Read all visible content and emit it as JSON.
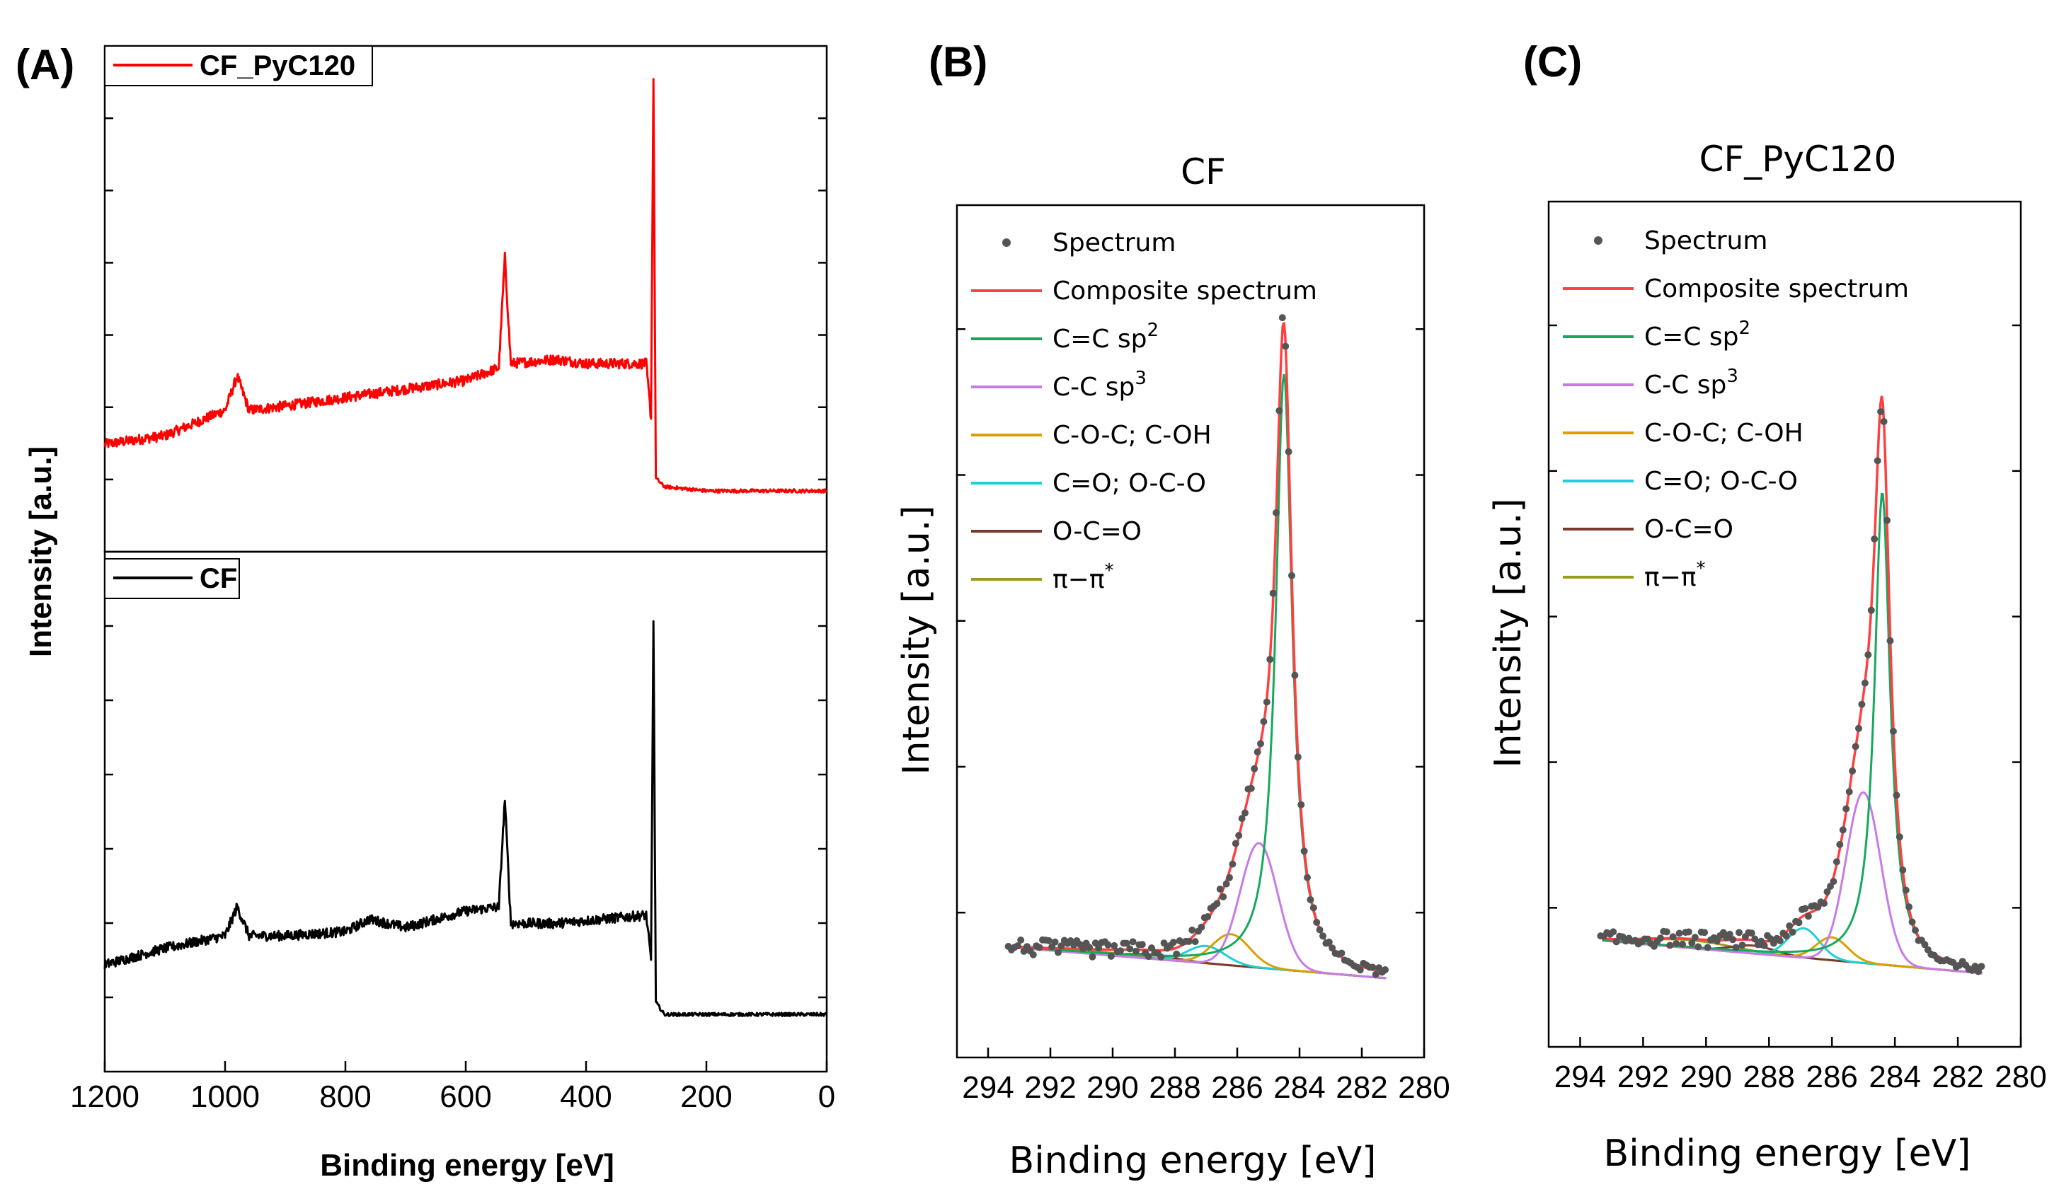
{
  "chart_data": [
    {
      "panel": "(A)",
      "type": "line",
      "title": "",
      "xlabel": "Binding energy [eV]",
      "ylabel": "Intensity [a.u.]",
      "xlim": [
        1200,
        0
      ],
      "xticks": [
        1200,
        1000,
        800,
        600,
        400,
        200,
        0
      ],
      "stacked_panels": [
        {
          "name": "CF_PyC120",
          "color": "#ff0000",
          "points": [
            [
              1200,
              0.12
            ],
            [
              1100,
              0.14
            ],
            [
              1000,
              0.2
            ],
            [
              980,
              0.28
            ],
            [
              960,
              0.2
            ],
            [
              900,
              0.21
            ],
            [
              800,
              0.23
            ],
            [
              700,
              0.25
            ],
            [
              600,
              0.27
            ],
            [
              545,
              0.3
            ],
            [
              535,
              0.56
            ],
            [
              525,
              0.31
            ],
            [
              450,
              0.32
            ],
            [
              400,
              0.31
            ],
            [
              300,
              0.31
            ],
            [
              292,
              0.18
            ],
            [
              288,
              0.98
            ],
            [
              284,
              0.04
            ],
            [
              270,
              0.02
            ],
            [
              200,
              0.01
            ],
            [
              100,
              0.01
            ],
            [
              0,
              0.01
            ]
          ]
        },
        {
          "name": "CF",
          "color": "#000000",
          "points": [
            [
              1200,
              0.13
            ],
            [
              1100,
              0.17
            ],
            [
              1000,
              0.2
            ],
            [
              980,
              0.27
            ],
            [
              960,
              0.2
            ],
            [
              900,
              0.2
            ],
            [
              800,
              0.21
            ],
            [
              760,
              0.24
            ],
            [
              700,
              0.22
            ],
            [
              600,
              0.26
            ],
            [
              545,
              0.27
            ],
            [
              535,
              0.53
            ],
            [
              525,
              0.23
            ],
            [
              450,
              0.23
            ],
            [
              300,
              0.25
            ],
            [
              292,
              0.14
            ],
            [
              288,
              0.96
            ],
            [
              284,
              0.04
            ],
            [
              270,
              0.01
            ],
            [
              200,
              0.01
            ],
            [
              100,
              0.01
            ],
            [
              0,
              0.01
            ]
          ]
        }
      ]
    },
    {
      "panel": "(B)",
      "type": "line",
      "title": "CF",
      "xlabel": "Binding energy [eV]",
      "ylabel": "Intensity [a.u.]",
      "xlim": [
        295,
        280
      ],
      "ylim": [
        0,
        1
      ],
      "xticks": [
        294,
        292,
        290,
        288,
        286,
        284,
        282,
        280
      ],
      "baseline": {
        "left": 0.045,
        "right": 0.0
      },
      "legend": [
        {
          "label": "Spectrum",
          "sup": "",
          "color": "#555555",
          "kind": "dot"
        },
        {
          "label": "Composite spectrum",
          "sup": "",
          "color": "#ff4040",
          "kind": "line"
        },
        {
          "label": "C=C sp",
          "sup": "2",
          "color": "#16a85c",
          "kind": "line"
        },
        {
          "label": "C-C sp",
          "sup": "3",
          "color": "#c77be6",
          "kind": "line"
        },
        {
          "label": "C-O-C; C-OH",
          "sup": "",
          "color": "#d9a000",
          "kind": "line"
        },
        {
          "label": "C=O; O-C-O",
          "sup": "",
          "color": "#1fcfd6",
          "kind": "line"
        },
        {
          "label": "O-C=O",
          "sup": "",
          "color": "#7a3b2e",
          "kind": "line"
        },
        {
          "label": "π−π",
          "sup": "*",
          "color": "#9b9b1a",
          "kind": "line"
        }
      ],
      "components": [
        {
          "name": "C=C sp2",
          "center": 284.5,
          "height": 0.86,
          "width": 0.32,
          "shape": "lorentz"
        },
        {
          "name": "C-C sp3",
          "center": 285.3,
          "height": 0.18,
          "width": 0.6,
          "shape": "gauss"
        },
        {
          "name": "C-O-C; C-OH",
          "center": 286.2,
          "height": 0.045,
          "width": 0.6,
          "shape": "gauss"
        },
        {
          "name": "C=O; O-C-O",
          "center": 287.0,
          "height": 0.025,
          "width": 0.6,
          "shape": "gauss"
        },
        {
          "name": "O-C=O",
          "center": 288.8,
          "height": 0.006,
          "width": 0.8,
          "shape": "gauss"
        },
        {
          "name": "π−π*",
          "center": 290.5,
          "height": 0.004,
          "width": 1.2,
          "shape": "gauss"
        }
      ]
    },
    {
      "panel": "(C)",
      "type": "line",
      "title": "CF_PyC120",
      "xlabel": "Binding energy [eV]",
      "ylabel": "Intensity [a.u.]",
      "xlim": [
        295,
        280
      ],
      "ylim": [
        0,
        1
      ],
      "xticks": [
        294,
        292,
        290,
        288,
        286,
        284,
        282,
        280
      ],
      "baseline": {
        "left": 0.05,
        "right": 0.0
      },
      "legend": [
        {
          "label": "Spectrum",
          "sup": "",
          "color": "#555555",
          "kind": "dot"
        },
        {
          "label": "Composite spectrum",
          "sup": "",
          "color": "#ff4040",
          "kind": "line"
        },
        {
          "label": "C=C sp",
          "sup": "2",
          "color": "#16a85c",
          "kind": "line"
        },
        {
          "label": "C-C sp",
          "sup": "3",
          "color": "#c77be6",
          "kind": "line"
        },
        {
          "label": "C-O-C; C-OH",
          "sup": "",
          "color": "#d9a000",
          "kind": "line"
        },
        {
          "label": "C=O; O-C-O",
          "sup": "",
          "color": "#1fcfd6",
          "kind": "line"
        },
        {
          "label": "O-C=O",
          "sup": "",
          "color": "#7a3b2e",
          "kind": "line"
        },
        {
          "label": "π−π",
          "sup": "*",
          "color": "#9b9b1a",
          "kind": "line"
        }
      ],
      "components": [
        {
          "name": "C=C sp2",
          "center": 284.4,
          "height": 0.72,
          "width": 0.3,
          "shape": "lorentz"
        },
        {
          "name": "C-C sp3",
          "center": 285.0,
          "height": 0.26,
          "width": 0.55,
          "shape": "gauss"
        },
        {
          "name": "C-O-C; C-OH",
          "center": 286.0,
          "height": 0.035,
          "width": 0.5,
          "shape": "gauss"
        },
        {
          "name": "C=O; O-C-O",
          "center": 286.9,
          "height": 0.045,
          "width": 0.5,
          "shape": "gauss"
        },
        {
          "name": "O-C=O",
          "center": 288.5,
          "height": 0.012,
          "width": 0.7,
          "shape": "gauss"
        },
        {
          "name": "π−π*",
          "center": 290.5,
          "height": 0.012,
          "width": 1.4,
          "shape": "gauss"
        }
      ]
    }
  ]
}
